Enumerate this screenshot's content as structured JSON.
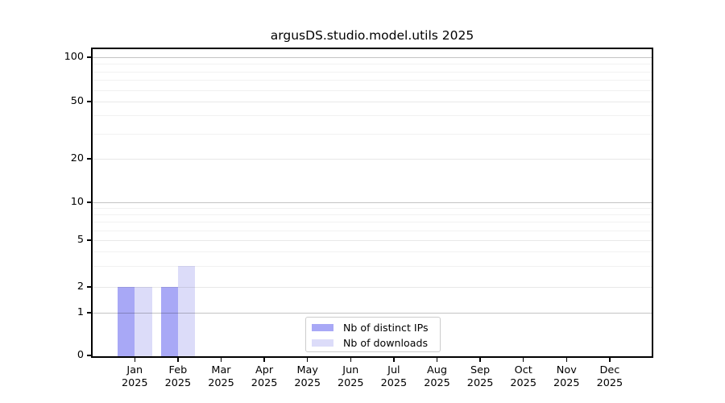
{
  "chart_data": {
    "type": "bar",
    "title": "argusDS.studio.model.utils 2025",
    "categories": [
      "Jan",
      "Feb",
      "Mar",
      "Apr",
      "May",
      "Jun",
      "Jul",
      "Aug",
      "Sep",
      "Oct",
      "Nov",
      "Dec"
    ],
    "category_year": "2025",
    "series": [
      {
        "name": "Nb of distinct IPs",
        "color": "#a8a8f6",
        "values": [
          2,
          2,
          0,
          0,
          0,
          0,
          0,
          0,
          0,
          0,
          0,
          0
        ]
      },
      {
        "name": "Nb of downloads",
        "color": "#dcdcf9",
        "values": [
          2,
          3,
          0,
          0,
          0,
          0,
          0,
          0,
          0,
          0,
          0,
          0
        ]
      }
    ],
    "xlabel": "",
    "ylabel": "",
    "y_ticks": [
      100,
      50,
      20,
      10,
      5,
      2,
      1,
      0
    ],
    "y_minor_gridlines": [
      3,
      4,
      6,
      7,
      8,
      9,
      30,
      40,
      60,
      70,
      80,
      90
    ],
    "scale": "log-like (compressed near zero)",
    "ylim": [
      0,
      100
    ],
    "grid": true,
    "legend": {
      "position": "bottom-center-inside"
    }
  }
}
